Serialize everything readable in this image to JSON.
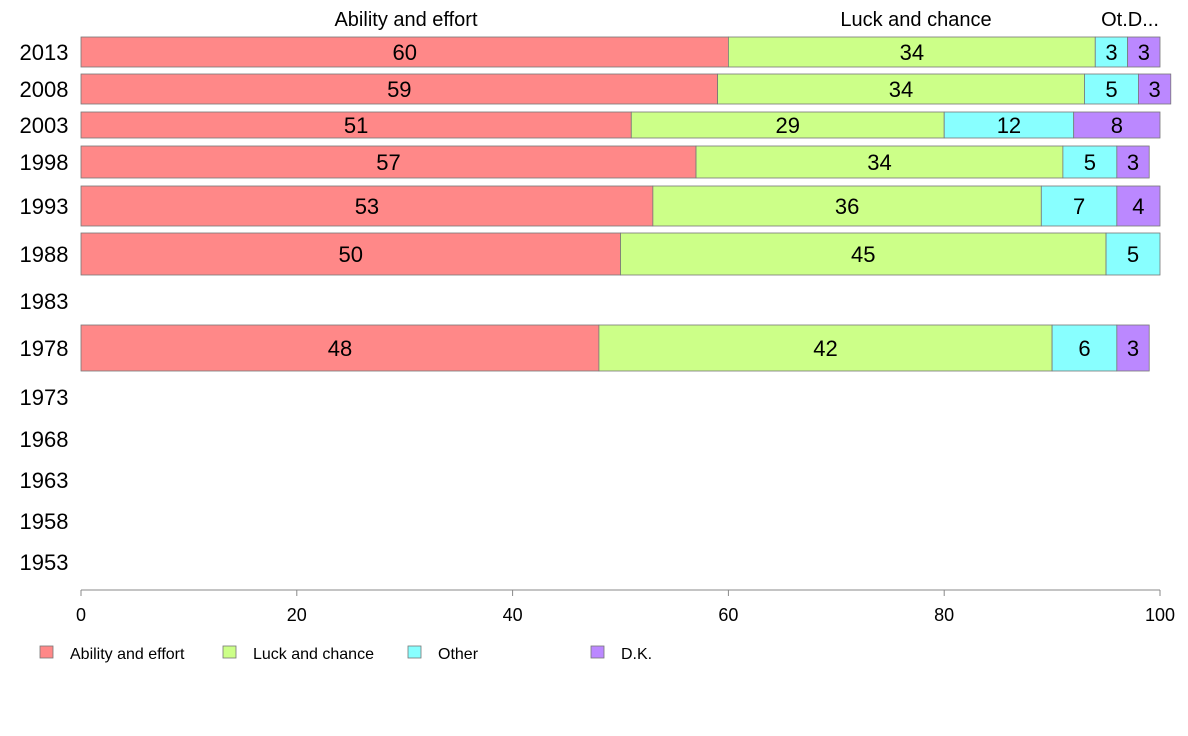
{
  "chart_data": {
    "type": "bar",
    "orientation": "horizontal",
    "stacked": true,
    "categories": [
      "2013",
      "2008",
      "2003",
      "1998",
      "1993",
      "1988",
      "1983",
      "1978",
      "1973",
      "1968",
      "1963",
      "1958",
      "1953"
    ],
    "series": [
      {
        "name": "Ability and effort",
        "color": "#ff8888",
        "values": [
          60,
          59,
          51,
          57,
          53,
          50,
          null,
          48,
          null,
          null,
          null,
          null,
          null
        ]
      },
      {
        "name": "Luck and chance",
        "color": "#ccff88",
        "values": [
          34,
          34,
          29,
          34,
          36,
          45,
          null,
          42,
          null,
          null,
          null,
          null,
          null
        ]
      },
      {
        "name": "Other",
        "color": "#88ffff",
        "values": [
          3,
          5,
          12,
          5,
          7,
          5,
          null,
          6,
          null,
          null,
          null,
          null,
          null
        ]
      },
      {
        "name": "D.K.",
        "color": "#bb88ff",
        "values": [
          3,
          3,
          8,
          3,
          4,
          null,
          null,
          3,
          null,
          null,
          null,
          null,
          null
        ]
      }
    ],
    "column_labels": [
      "Ability and effort",
      "Luck and chance",
      "Ot.D..."
    ],
    "xlim": [
      0,
      100
    ],
    "xticks": [
      "0",
      "20",
      "40",
      "60",
      "80",
      "100"
    ],
    "grid": false,
    "legend_position": "bottom-left"
  }
}
